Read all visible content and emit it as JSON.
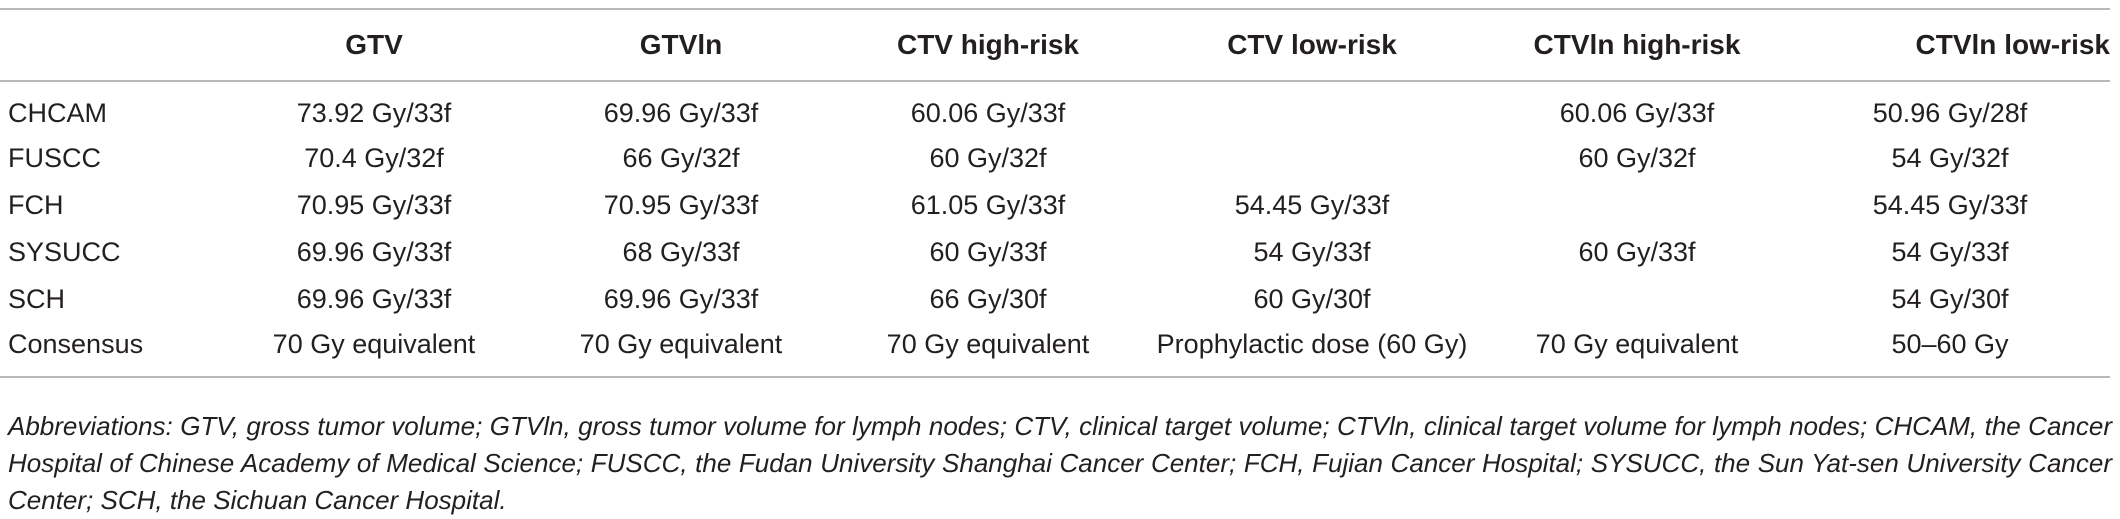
{
  "table": {
    "headers": [
      "",
      "GTV",
      "GTVln",
      "CTV high-risk",
      "CTV low-risk",
      "CTVln high-risk",
      "CTVln low-risk"
    ],
    "rows": [
      [
        "CHCAM",
        "73.92 Gy/33f",
        "69.96 Gy/33f",
        "60.06 Gy/33f",
        "",
        "60.06 Gy/33f",
        "50.96 Gy/28f"
      ],
      [
        "FUSCC",
        "70.4 Gy/32f",
        "66 Gy/32f",
        "60 Gy/32f",
        "",
        "60 Gy/32f",
        "54 Gy/32f"
      ],
      [
        "FCH",
        "70.95 Gy/33f",
        "70.95 Gy/33f",
        "61.05 Gy/33f",
        "54.45 Gy/33f",
        "",
        "54.45 Gy/33f"
      ],
      [
        "SYSUCC",
        "69.96 Gy/33f",
        "68 Gy/33f",
        "60 Gy/33f",
        "54 Gy/33f",
        "60 Gy/33f",
        "54 Gy/33f"
      ],
      [
        "SCH",
        "69.96 Gy/33f",
        "69.96 Gy/33f",
        "66 Gy/30f",
        "60 Gy/30f",
        "",
        "54 Gy/30f"
      ],
      [
        "Consensus",
        "70 Gy equivalent",
        "70 Gy equivalent",
        "70 Gy equivalent",
        "Prophylactic dose (60 Gy)",
        "70 Gy equivalent",
        "50–60 Gy"
      ]
    ]
  },
  "footnote": "Abbreviations: GTV, gross tumor volume; GTVln, gross tumor volume for lymph nodes; CTV, clinical target volume; CTVln, clinical target volume for lymph nodes; CHCAM, the Cancer Hospital of Chinese Academy of Medical Science; FUSCC, the Fudan University Shanghai Cancer Center; FCH, Fujian Cancer Hospital; SYSUCC, the Sun Yat-sen University Cancer Center; SCH, the Sichuan Cancer Hospital."
}
